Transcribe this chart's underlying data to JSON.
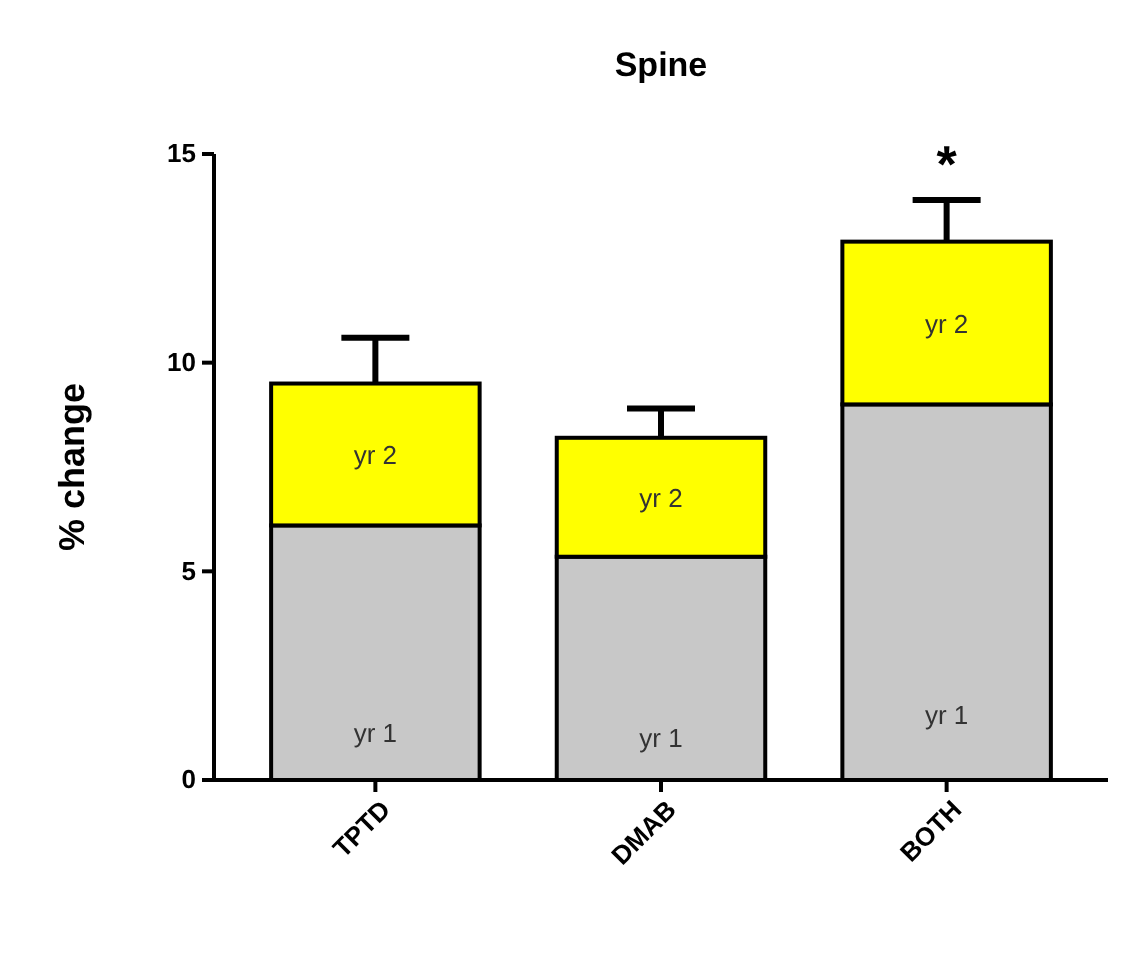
{
  "chart_data": {
    "type": "bar",
    "title": "Spine",
    "ylabel": "% change",
    "categories": [
      "TPTD",
      "DMAB",
      "BOTH"
    ],
    "stacked": true,
    "series": [
      {
        "name": "yr 1",
        "color": "#c8c8c8",
        "values": [
          6.1,
          5.35,
          9.0
        ]
      },
      {
        "name": "yr 2",
        "color": "#ffff00",
        "values": [
          3.4,
          2.85,
          3.9
        ],
        "errors": [
          [
            9.5,
            10.6
          ],
          [
            8.2,
            8.9
          ],
          [
            12.9,
            13.9
          ]
        ]
      }
    ],
    "ylim": [
      0,
      15
    ],
    "yticks": [
      0,
      5,
      10,
      15
    ],
    "legend": false,
    "annotations": [
      "*"
    ]
  }
}
